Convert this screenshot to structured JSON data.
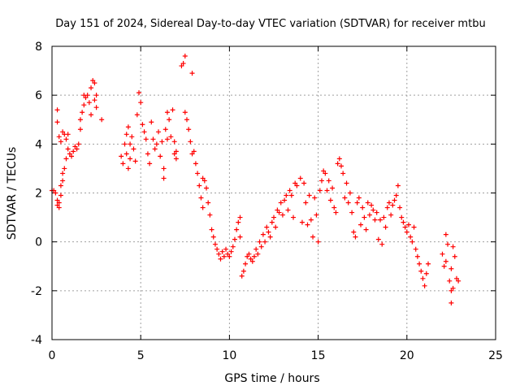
{
  "chart_data": {
    "type": "scatter",
    "title": "Day 151 of 2024, Sidereal Day-to-day VTEC variation (SDTVAR) for receiver mtbu",
    "xlabel": "GPS time / hours",
    "ylabel": "SDTVAR / TECUs",
    "xlim": [
      0,
      25
    ],
    "ylim": [
      -4,
      8
    ],
    "xticks": [
      0,
      5,
      10,
      15,
      20,
      25
    ],
    "yticks": [
      -4,
      -2,
      0,
      2,
      4,
      6,
      8
    ],
    "grid": true,
    "marker": "plus",
    "color": "#ff0000",
    "series": [
      {
        "name": "SDTVAR",
        "points": [
          [
            0.0,
            2.1
          ],
          [
            0.1,
            2.1
          ],
          [
            0.2,
            2.0
          ],
          [
            0.3,
            1.7
          ],
          [
            0.3,
            1.5
          ],
          [
            0.4,
            1.4
          ],
          [
            0.4,
            1.6
          ],
          [
            0.5,
            1.9
          ],
          [
            0.5,
            2.3
          ],
          [
            0.6,
            2.5
          ],
          [
            0.6,
            2.8
          ],
          [
            0.7,
            3.0
          ],
          [
            0.8,
            3.4
          ],
          [
            0.9,
            3.8
          ],
          [
            0.3,
            4.9
          ],
          [
            0.3,
            5.4
          ],
          [
            0.4,
            4.3
          ],
          [
            0.5,
            4.1
          ],
          [
            0.6,
            4.5
          ],
          [
            0.7,
            4.4
          ],
          [
            0.8,
            4.2
          ],
          [
            0.9,
            4.4
          ],
          [
            1.0,
            3.6
          ],
          [
            1.1,
            3.5
          ],
          [
            1.2,
            3.7
          ],
          [
            1.3,
            3.9
          ],
          [
            1.4,
            3.8
          ],
          [
            1.5,
            4.0
          ],
          [
            1.6,
            4.6
          ],
          [
            1.6,
            5.0
          ],
          [
            1.7,
            5.3
          ],
          [
            1.8,
            5.6
          ],
          [
            1.8,
            6.0
          ],
          [
            1.9,
            5.9
          ],
          [
            2.0,
            6.0
          ],
          [
            2.1,
            5.7
          ],
          [
            2.2,
            5.2
          ],
          [
            2.2,
            6.3
          ],
          [
            2.3,
            6.6
          ],
          [
            2.4,
            6.5
          ],
          [
            2.4,
            5.8
          ],
          [
            2.5,
            5.5
          ],
          [
            2.5,
            6.0
          ],
          [
            2.8,
            5.0
          ],
          [
            3.9,
            3.5
          ],
          [
            4.0,
            3.2
          ],
          [
            4.1,
            4.0
          ],
          [
            4.2,
            3.6
          ],
          [
            4.2,
            4.4
          ],
          [
            4.3,
            4.7
          ],
          [
            4.4,
            4.0
          ],
          [
            4.4,
            3.4
          ],
          [
            4.5,
            4.3
          ],
          [
            4.6,
            3.8
          ],
          [
            4.7,
            3.3
          ],
          [
            4.3,
            3.0
          ],
          [
            4.8,
            5.2
          ],
          [
            4.9,
            6.1
          ],
          [
            5.0,
            5.7
          ],
          [
            5.1,
            4.8
          ],
          [
            5.2,
            4.5
          ],
          [
            5.3,
            4.2
          ],
          [
            5.4,
            3.6
          ],
          [
            5.5,
            3.2
          ],
          [
            5.6,
            4.9
          ],
          [
            5.7,
            4.2
          ],
          [
            5.8,
            3.8
          ],
          [
            5.9,
            4.0
          ],
          [
            6.0,
            4.5
          ],
          [
            6.1,
            3.5
          ],
          [
            6.2,
            4.1
          ],
          [
            6.3,
            3.0
          ],
          [
            6.3,
            2.6
          ],
          [
            6.4,
            4.6
          ],
          [
            6.5,
            4.2
          ],
          [
            6.5,
            5.3
          ],
          [
            6.6,
            5.0
          ],
          [
            6.7,
            4.3
          ],
          [
            6.8,
            5.4
          ],
          [
            6.9,
            4.1
          ],
          [
            6.9,
            3.6
          ],
          [
            7.0,
            3.7
          ],
          [
            7.0,
            3.4
          ],
          [
            7.3,
            7.2
          ],
          [
            7.4,
            7.3
          ],
          [
            7.5,
            7.6
          ],
          [
            7.5,
            5.3
          ],
          [
            7.6,
            5.0
          ],
          [
            7.7,
            4.6
          ],
          [
            7.8,
            4.1
          ],
          [
            7.9,
            6.9
          ],
          [
            7.9,
            3.6
          ],
          [
            8.0,
            3.7
          ],
          [
            8.1,
            3.2
          ],
          [
            8.2,
            2.8
          ],
          [
            8.3,
            2.3
          ],
          [
            8.4,
            1.8
          ],
          [
            8.5,
            1.4
          ],
          [
            8.5,
            2.6
          ],
          [
            8.6,
            2.5
          ],
          [
            8.7,
            2.2
          ],
          [
            8.8,
            1.6
          ],
          [
            8.9,
            1.1
          ],
          [
            9.0,
            0.5
          ],
          [
            9.1,
            0.2
          ],
          [
            9.2,
            -0.1
          ],
          [
            9.3,
            -0.3
          ],
          [
            9.4,
            -0.5
          ],
          [
            9.5,
            -0.7
          ],
          [
            9.6,
            -0.4
          ],
          [
            9.7,
            -0.6
          ],
          [
            9.8,
            -0.3
          ],
          [
            9.9,
            -0.5
          ],
          [
            10.0,
            -0.6
          ],
          [
            10.1,
            -0.4
          ],
          [
            10.2,
            -0.2
          ],
          [
            10.3,
            0.1
          ],
          [
            10.4,
            0.5
          ],
          [
            10.5,
            0.8
          ],
          [
            10.6,
            1.0
          ],
          [
            10.6,
            0.2
          ],
          [
            10.7,
            -1.4
          ],
          [
            10.8,
            -1.2
          ],
          [
            10.9,
            -0.9
          ],
          [
            11.0,
            -0.6
          ],
          [
            11.1,
            -0.5
          ],
          [
            11.2,
            -0.7
          ],
          [
            11.3,
            -0.8
          ],
          [
            11.4,
            -0.6
          ],
          [
            11.5,
            -0.3
          ],
          [
            11.6,
            -0.5
          ],
          [
            11.7,
            0.0
          ],
          [
            11.8,
            -0.2
          ],
          [
            11.9,
            0.3
          ],
          [
            12.0,
            0.0
          ],
          [
            12.1,
            0.6
          ],
          [
            12.2,
            0.4
          ],
          [
            12.3,
            0.2
          ],
          [
            12.4,
            0.8
          ],
          [
            12.5,
            1.0
          ],
          [
            12.6,
            0.6
          ],
          [
            12.7,
            1.3
          ],
          [
            12.8,
            1.2
          ],
          [
            12.9,
            1.6
          ],
          [
            13.0,
            1.1
          ],
          [
            13.1,
            1.7
          ],
          [
            13.2,
            1.9
          ],
          [
            13.3,
            1.3
          ],
          [
            13.4,
            2.1
          ],
          [
            13.5,
            1.9
          ],
          [
            13.6,
            1.0
          ],
          [
            13.7,
            2.4
          ],
          [
            13.8,
            2.3
          ],
          [
            14.0,
            2.6
          ],
          [
            14.1,
            0.8
          ],
          [
            14.2,
            2.4
          ],
          [
            14.3,
            1.6
          ],
          [
            14.4,
            0.7
          ],
          [
            14.5,
            1.9
          ],
          [
            14.6,
            0.9
          ],
          [
            14.7,
            0.2
          ],
          [
            14.8,
            1.8
          ],
          [
            14.9,
            1.1
          ],
          [
            15.0,
            0.0
          ],
          [
            15.1,
            2.1
          ],
          [
            15.2,
            2.5
          ],
          [
            15.3,
            2.9
          ],
          [
            15.4,
            2.8
          ],
          [
            15.5,
            2.1
          ],
          [
            15.6,
            2.5
          ],
          [
            15.7,
            1.7
          ],
          [
            15.8,
            2.2
          ],
          [
            15.9,
            1.4
          ],
          [
            16.0,
            1.2
          ],
          [
            16.1,
            3.2
          ],
          [
            16.2,
            3.4
          ],
          [
            16.3,
            3.1
          ],
          [
            16.4,
            2.8
          ],
          [
            16.5,
            1.8
          ],
          [
            16.6,
            2.4
          ],
          [
            16.7,
            1.6
          ],
          [
            16.8,
            2.0
          ],
          [
            16.9,
            1.2
          ],
          [
            17.0,
            0.4
          ],
          [
            17.1,
            0.2
          ],
          [
            17.2,
            1.6
          ],
          [
            17.3,
            1.8
          ],
          [
            17.4,
            0.7
          ],
          [
            17.5,
            1.4
          ],
          [
            17.6,
            1.0
          ],
          [
            17.7,
            0.5
          ],
          [
            17.8,
            1.6
          ],
          [
            17.9,
            1.1
          ],
          [
            18.0,
            1.5
          ],
          [
            18.1,
            1.3
          ],
          [
            18.2,
            0.9
          ],
          [
            18.3,
            1.2
          ],
          [
            18.4,
            0.1
          ],
          [
            18.5,
            0.9
          ],
          [
            18.6,
            -0.1
          ],
          [
            18.7,
            1.0
          ],
          [
            18.8,
            0.6
          ],
          [
            18.9,
            1.4
          ],
          [
            19.0,
            1.6
          ],
          [
            19.1,
            1.1
          ],
          [
            19.2,
            1.5
          ],
          [
            19.3,
            1.7
          ],
          [
            19.4,
            1.9
          ],
          [
            19.5,
            2.3
          ],
          [
            19.6,
            1.4
          ],
          [
            19.7,
            1.0
          ],
          [
            19.8,
            0.8
          ],
          [
            19.9,
            0.6
          ],
          [
            20.0,
            0.4
          ],
          [
            20.1,
            0.7
          ],
          [
            20.2,
            0.2
          ],
          [
            20.3,
            0.0
          ],
          [
            20.4,
            0.6
          ],
          [
            20.5,
            -0.3
          ],
          [
            20.6,
            -0.6
          ],
          [
            20.7,
            -0.9
          ],
          [
            20.8,
            -1.2
          ],
          [
            20.9,
            -1.5
          ],
          [
            21.0,
            -1.8
          ],
          [
            21.1,
            -1.3
          ],
          [
            21.2,
            -0.9
          ],
          [
            22.0,
            -0.5
          ],
          [
            22.1,
            -1.0
          ],
          [
            22.2,
            -0.8
          ],
          [
            22.2,
            0.3
          ],
          [
            22.3,
            -0.1
          ],
          [
            22.4,
            -1.6
          ],
          [
            22.5,
            -2.0
          ],
          [
            22.5,
            -2.5
          ],
          [
            22.6,
            -1.9
          ],
          [
            22.7,
            -0.6
          ],
          [
            22.6,
            -0.2
          ],
          [
            22.5,
            -1.1
          ],
          [
            22.9,
            -1.6
          ],
          [
            22.8,
            -1.5
          ]
        ]
      }
    ]
  }
}
